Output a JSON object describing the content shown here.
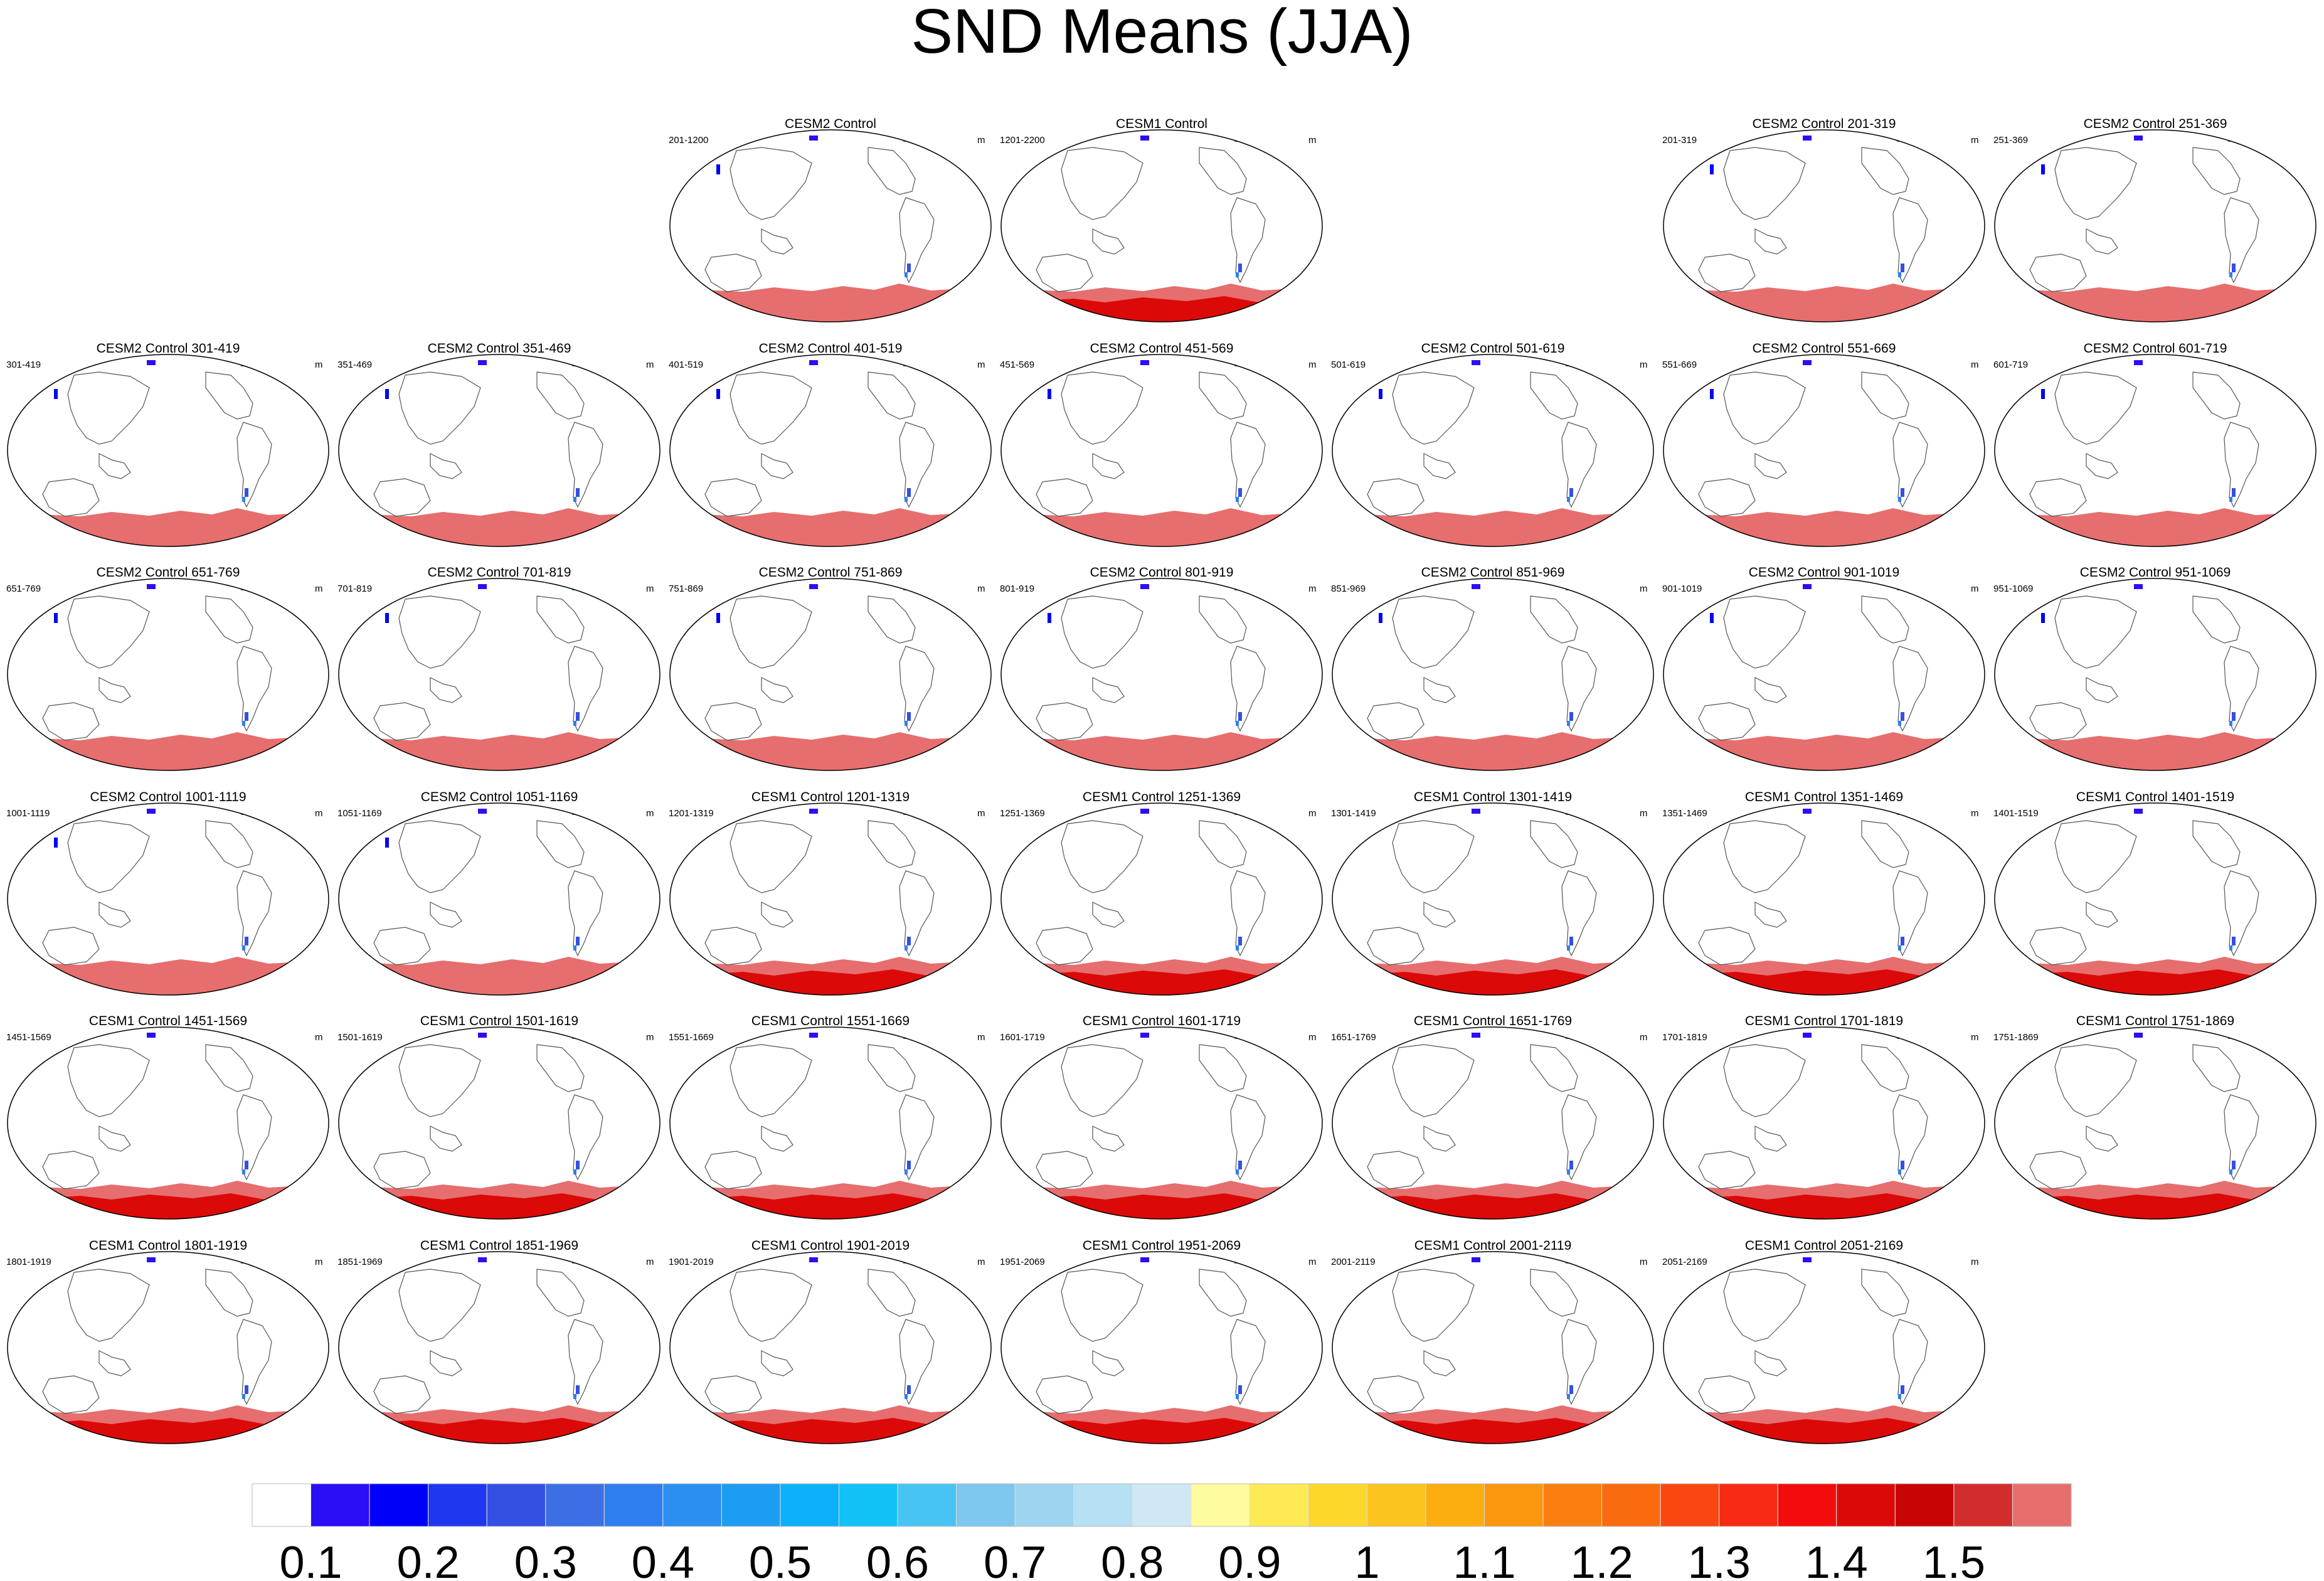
{
  "title": "SND Means (JJA)",
  "chart_data": {
    "type": "heatmap",
    "description_units": "m",
    "colorbar": {
      "labels": [
        "0.1",
        "0.2",
        "0.3",
        "0.4",
        "0.5",
        "0.6",
        "0.7",
        "0.8",
        "0.9",
        "1",
        "1.1",
        "1.2",
        "1.3",
        "1.4",
        "1.5"
      ],
      "colors": [
        "#ffffff",
        "#2a0ef5",
        "#0000f9",
        "#1f37ef",
        "#3350e3",
        "#3d6fe4",
        "#2f7ef0",
        "#2a8ff1",
        "#1c9cf2",
        "#0bb0f9",
        "#10c2f6",
        "#47c4f3",
        "#7ec7ee",
        "#9ed4f0",
        "#b6e0f3",
        "#cfe8f5",
        "#fefc9e",
        "#feea55",
        "#fdd82a",
        "#fcc41e",
        "#fcae10",
        "#fb960f",
        "#fa7f0f",
        "#fa6a0e",
        "#f94711",
        "#f72a13",
        "#f20c0c",
        "#dc0909",
        "#c80405",
        "#d22d2d",
        "#e66e6e"
      ]
    },
    "panels": [
      {
        "title": "CESM2 Control",
        "left": "201-1200",
        "right": "m",
        "row": 0,
        "col": 2,
        "model": "CESM2"
      },
      {
        "title": "CESM1 Control",
        "left": "1201-2200",
        "right": "m",
        "row": 0,
        "col": 3,
        "model": "CESM1"
      },
      {
        "title": "CESM2 Control 201-319",
        "left": "201-319",
        "right": "m",
        "row": 0,
        "col": 5,
        "model": "CESM2"
      },
      {
        "title": "CESM2 Control 251-369",
        "left": "251-369",
        "right": "",
        "row": 0,
        "col": 6,
        "model": "CESM2"
      },
      {
        "title": "CESM2 Control 301-419",
        "left": "301-419",
        "right": "m",
        "row": 1,
        "col": 0,
        "model": "CESM2"
      },
      {
        "title": "CESM2 Control 351-469",
        "left": "351-469",
        "right": "m",
        "row": 1,
        "col": 1,
        "model": "CESM2"
      },
      {
        "title": "CESM2 Control 401-519",
        "left": "401-519",
        "right": "m",
        "row": 1,
        "col": 2,
        "model": "CESM2"
      },
      {
        "title": "CESM2 Control 451-569",
        "left": "451-569",
        "right": "m",
        "row": 1,
        "col": 3,
        "model": "CESM2"
      },
      {
        "title": "CESM2 Control 501-619",
        "left": "501-619",
        "right": "m",
        "row": 1,
        "col": 4,
        "model": "CESM2"
      },
      {
        "title": "CESM2 Control 551-669",
        "left": "551-669",
        "right": "m",
        "row": 1,
        "col": 5,
        "model": "CESM2"
      },
      {
        "title": "CESM2 Control 601-719",
        "left": "601-719",
        "right": "",
        "row": 1,
        "col": 6,
        "model": "CESM2"
      },
      {
        "title": "CESM2 Control 651-769",
        "left": "651-769",
        "right": "m",
        "row": 2,
        "col": 0,
        "model": "CESM2"
      },
      {
        "title": "CESM2 Control 701-819",
        "left": "701-819",
        "right": "m",
        "row": 2,
        "col": 1,
        "model": "CESM2"
      },
      {
        "title": "CESM2 Control 751-869",
        "left": "751-869",
        "right": "m",
        "row": 2,
        "col": 2,
        "model": "CESM2"
      },
      {
        "title": "CESM2 Control 801-919",
        "left": "801-919",
        "right": "m",
        "row": 2,
        "col": 3,
        "model": "CESM2"
      },
      {
        "title": "CESM2 Control 851-969",
        "left": "851-969",
        "right": "m",
        "row": 2,
        "col": 4,
        "model": "CESM2"
      },
      {
        "title": "CESM2 Control 901-1019",
        "left": "901-1019",
        "right": "m",
        "row": 2,
        "col": 5,
        "model": "CESM2"
      },
      {
        "title": "CESM2 Control 951-1069",
        "left": "951-1069",
        "right": "",
        "row": 2,
        "col": 6,
        "model": "CESM2"
      },
      {
        "title": "CESM2 Control 1001-1119",
        "left": "1001-1119",
        "right": "m",
        "row": 3,
        "col": 0,
        "model": "CESM2"
      },
      {
        "title": "CESM2 Control 1051-1169",
        "left": "1051-1169",
        "right": "m",
        "row": 3,
        "col": 1,
        "model": "CESM2"
      },
      {
        "title": "CESM1 Control 1201-1319",
        "left": "1201-1319",
        "right": "m",
        "row": 3,
        "col": 2,
        "model": "CESM1"
      },
      {
        "title": "CESM1 Control 1251-1369",
        "left": "1251-1369",
        "right": "m",
        "row": 3,
        "col": 3,
        "model": "CESM1"
      },
      {
        "title": "CESM1 Control 1301-1419",
        "left": "1301-1419",
        "right": "m",
        "row": 3,
        "col": 4,
        "model": "CESM1"
      },
      {
        "title": "CESM1 Control 1351-1469",
        "left": "1351-1469",
        "right": "m",
        "row": 3,
        "col": 5,
        "model": "CESM1"
      },
      {
        "title": "CESM1 Control 1401-1519",
        "left": "1401-1519",
        "right": "",
        "row": 3,
        "col": 6,
        "model": "CESM1"
      },
      {
        "title": "CESM1 Control 1451-1569",
        "left": "1451-1569",
        "right": "m",
        "row": 4,
        "col": 0,
        "model": "CESM1"
      },
      {
        "title": "CESM1 Control 1501-1619",
        "left": "1501-1619",
        "right": "m",
        "row": 4,
        "col": 1,
        "model": "CESM1"
      },
      {
        "title": "CESM1 Control 1551-1669",
        "left": "1551-1669",
        "right": "m",
        "row": 4,
        "col": 2,
        "model": "CESM1"
      },
      {
        "title": "CESM1 Control 1601-1719",
        "left": "1601-1719",
        "right": "m",
        "row": 4,
        "col": 3,
        "model": "CESM1"
      },
      {
        "title": "CESM1 Control 1651-1769",
        "left": "1651-1769",
        "right": "m",
        "row": 4,
        "col": 4,
        "model": "CESM1"
      },
      {
        "title": "CESM1 Control 1701-1819",
        "left": "1701-1819",
        "right": "m",
        "row": 4,
        "col": 5,
        "model": "CESM1"
      },
      {
        "title": "CESM1 Control 1751-1869",
        "left": "1751-1869",
        "right": "",
        "row": 4,
        "col": 6,
        "model": "CESM1"
      },
      {
        "title": "CESM1 Control 1801-1919",
        "left": "1801-1919",
        "right": "m",
        "row": 5,
        "col": 0,
        "model": "CESM1"
      },
      {
        "title": "CESM1 Control 1851-1969",
        "left": "1851-1969",
        "right": "m",
        "row": 5,
        "col": 1,
        "model": "CESM1"
      },
      {
        "title": "CESM1 Control 1901-2019",
        "left": "1901-2019",
        "right": "m",
        "row": 5,
        "col": 2,
        "model": "CESM1"
      },
      {
        "title": "CESM1 Control 1951-2069",
        "left": "1951-2069",
        "right": "m",
        "row": 5,
        "col": 3,
        "model": "CESM1"
      },
      {
        "title": "CESM1 Control 2001-2119",
        "left": "2001-2119",
        "right": "m",
        "row": 5,
        "col": 4,
        "model": "CESM1"
      },
      {
        "title": "CESM1 Control 2051-2169",
        "left": "2051-2169",
        "right": "m",
        "row": 5,
        "col": 5,
        "model": "CESM1"
      }
    ]
  }
}
